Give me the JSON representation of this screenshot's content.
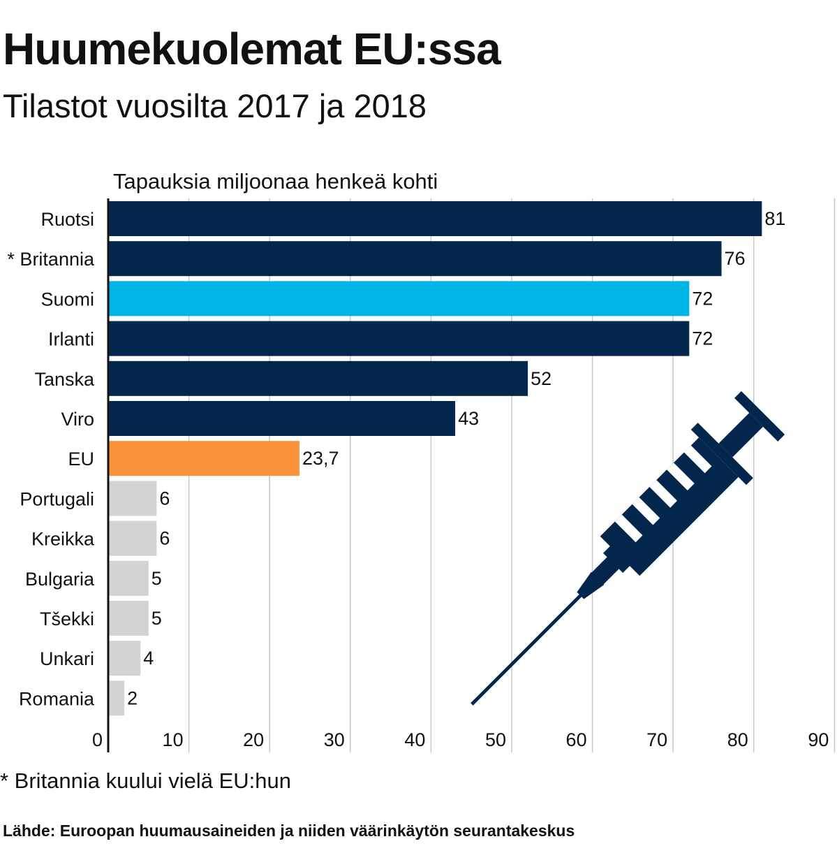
{
  "header": {
    "title": "Huumekuolemat EU:ssa",
    "subtitle": "Tilastot vuosilta 2017 ja 2018"
  },
  "chart_data": {
    "type": "bar",
    "orientation": "horizontal",
    "ylabel": "Tapauksia miljoonaa henkeä kohti",
    "categories": [
      "Ruotsi",
      "* Britannia",
      "Suomi",
      "Irlanti",
      "Tanska",
      "Viro",
      "EU",
      "Portugali",
      "Kreikka",
      "Bulgaria",
      "Tšekki",
      "Unkari",
      "Romania"
    ],
    "values": [
      81,
      76,
      72,
      72,
      52,
      43,
      23.7,
      6,
      6,
      5,
      5,
      4,
      2
    ],
    "value_labels": [
      "81",
      "76",
      "72",
      "72",
      "52",
      "43",
      "23,7",
      "6",
      "6",
      "5",
      "5",
      "4",
      "2"
    ],
    "bar_colors": [
      "#03264d",
      "#03264d",
      "#00b4e6",
      "#03264d",
      "#03264d",
      "#03264d",
      "#f99339",
      "#d1d3d4",
      "#d1d3d4",
      "#d1d3d4",
      "#d1d3d4",
      "#d1d3d4",
      "#d1d3d4"
    ],
    "xlim": [
      0,
      90
    ],
    "xticks": [
      0,
      10,
      20,
      30,
      40,
      50,
      60,
      70,
      80,
      90
    ],
    "grid": true,
    "decoration_icon": "syringe-icon",
    "colors": {
      "highlight": "#00b4e6",
      "eu": "#f99339",
      "high": "#03264d",
      "low": "#d1d3d4",
      "grid": "#c8c8c8"
    }
  },
  "footer": {
    "footnote": "* Britannia kuului vielä EU:hun",
    "source": "Lähde: Euroopan huumausaineiden ja niiden väärinkäytön seurantakeskus"
  }
}
